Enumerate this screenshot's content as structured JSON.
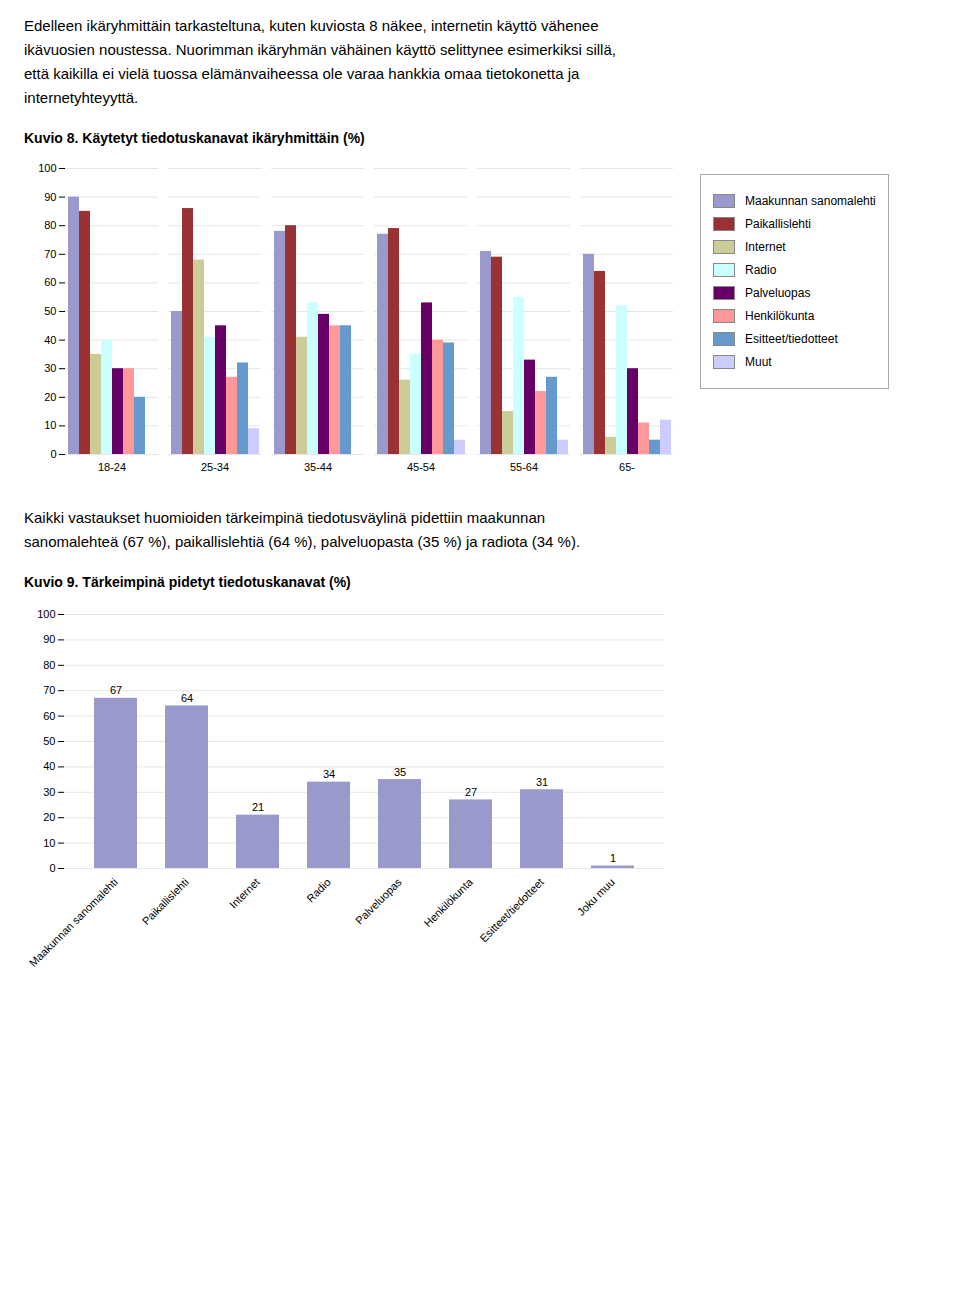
{
  "chart_data": [
    {
      "type": "bar",
      "annotations": [
        "Edelleen ikäryhmittäin tarkasteltuna, kuten kuviosta 8 näkee, internetin käyttö vähenee",
        "ikävuosien noustessa. Nuorimman ikäryhmän vähäinen käyttö selittynee esimerkiksi sillä,",
        "että kaikilla ei vielä tuossa elämänvaiheessa ole varaa hankkia omaa tietokonetta ja",
        "internetyhteyyttä."
      ],
      "title": "Kuvio 8. Käytetyt tiedotuskanavat ikäryhmittäin (%)",
      "categories": [
        "18-24",
        "25-34",
        "35-44",
        "45-54",
        "55-64",
        "65-"
      ],
      "series": [
        {
          "name": "Maakunnan sanomalehti",
          "color": "#9999cc",
          "values": [
            90,
            50,
            78,
            77,
            71,
            70
          ]
        },
        {
          "name": "Paikallislehti",
          "color": "#993333",
          "values": [
            85,
            86,
            80,
            79,
            69,
            64
          ]
        },
        {
          "name": "Internet",
          "color": "#cccc99",
          "values": [
            35,
            68,
            41,
            26,
            15,
            6
          ]
        },
        {
          "name": "Radio",
          "color": "#ccffff",
          "values": [
            40,
            41,
            53,
            35,
            55,
            52
          ]
        },
        {
          "name": "Palveluopas",
          "color": "#660066",
          "values": [
            30,
            45,
            49,
            53,
            33,
            30
          ]
        },
        {
          "name": "Henkilökunta",
          "color": "#ff9999",
          "values": [
            30,
            27,
            45,
            40,
            22,
            11
          ]
        },
        {
          "name": "Esitteet/tiedotteet",
          "color": "#6699cc",
          "values": [
            20,
            32,
            45,
            39,
            27,
            5
          ]
        },
        {
          "name": "Muut",
          "color": "#ccccff",
          "values": [
            0,
            9,
            0,
            5,
            5,
            12
          ]
        }
      ],
      "ylim": [
        0,
        100
      ],
      "yticks": [
        0,
        10,
        20,
        30,
        40,
        50,
        60,
        70,
        80,
        90,
        100
      ],
      "grid": true,
      "legend": "right"
    },
    {
      "type": "bar",
      "annotations": [
        "Kaikki vastaukset huomioiden tärkeimpinä tiedotusväylinä pidettiin maakunnan",
        "sanomalehteä (67 %), paikallislehtiä (64 %), palveluopasta (35 %) ja radiota (34 %)."
      ],
      "title": "Kuvio 9. Tärkeimpinä pidetyt tiedotuskanavat (%)",
      "categories": [
        "Maakunnan sanomalehti",
        "Paikallislehti",
        "Internet",
        "Radio",
        "Palveluopas",
        "Henkilökunta",
        "Esitteet/tiedotteet",
        "Joku muu"
      ],
      "values": [
        67,
        64,
        21,
        34,
        35,
        27,
        31,
        1
      ],
      "color": "#9999cc",
      "ylim": [
        0,
        100
      ],
      "yticks": [
        0,
        10,
        20,
        30,
        40,
        50,
        60,
        70,
        80,
        90,
        100
      ],
      "grid": true,
      "data_labels": true
    }
  ]
}
